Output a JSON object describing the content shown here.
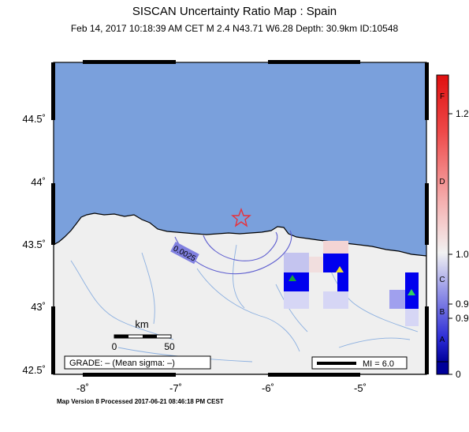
{
  "header": {
    "title": "SISCAN Uncertainty Ratio Map : Spain",
    "subtitle": "Feb 14, 2017 10:18:39 AM CET   M 2.4   N43.71 W6.28   Depth: 30.9km   ID:10548"
  },
  "footer": "Map Version 8 Processed 2017-06-21 08:46:18 PM CEST",
  "axes": {
    "lat_ticks": [
      "44.5˚",
      "44˚",
      "43.5˚",
      "43˚",
      "42.5˚"
    ],
    "lon_ticks": [
      "-8˚",
      "-7˚",
      "-6˚",
      "-5˚"
    ]
  },
  "contour_label": "0.0025",
  "scale_bar": {
    "unit": "km",
    "start": "0",
    "end": "50"
  },
  "grade_box": "GRADE: – (Mean sigma: –)",
  "mi_legend": "MI = 6.0",
  "colorbar": {
    "values": [
      "1.2",
      "1.0",
      "0.9",
      "0.9",
      "0"
    ],
    "letters": [
      "F",
      "D",
      "C",
      "B",
      "A"
    ]
  },
  "colors": {
    "sea": "#7aa0dc",
    "land": "#efefef",
    "epicenter": "#e8303a"
  },
  "epicenter": {
    "lat": 43.71,
    "lon": -6.28
  }
}
